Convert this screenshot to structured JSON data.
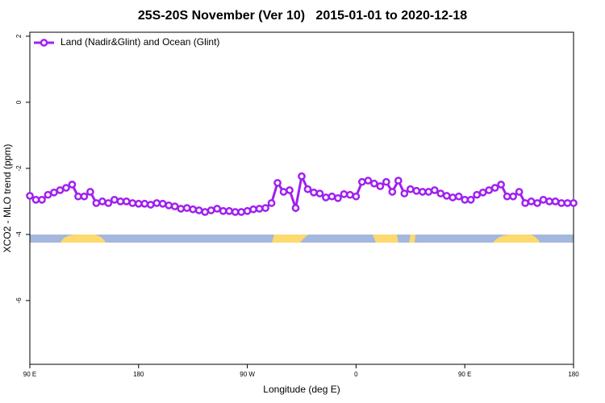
{
  "chart_data": {
    "type": "line",
    "title": "25S-20S November (Ver 10)   2015-01-01 to 2020-12-18",
    "x_label": "Longitude (deg E)",
    "y_label": "XCO2 - MLO trend (ppm)",
    "x": [
      90,
      95,
      100,
      105,
      110,
      115,
      120,
      125,
      130,
      135,
      140,
      145,
      150,
      155,
      160,
      165,
      170,
      175,
      180,
      185,
      190,
      195,
      200,
      205,
      210,
      215,
      220,
      225,
      230,
      235,
      240,
      245,
      250,
      255,
      260,
      265,
      270,
      275,
      280,
      285,
      290,
      295,
      300,
      305,
      310,
      315,
      320,
      325,
      330,
      335,
      340,
      345,
      350,
      355,
      360,
      365,
      370,
      375,
      380,
      385,
      390,
      395,
      400,
      405,
      410,
      415,
      420,
      425,
      430,
      435,
      440,
      445,
      450,
      455,
      460,
      465,
      470,
      475,
      480,
      485,
      490,
      495,
      500,
      505,
      510,
      515,
      520,
      525,
      530,
      535,
      540
    ],
    "series": [
      {
        "name": "Land (Nadir&Glint) and Ocean (Glint)",
        "color": "#a020f0",
        "values": [
          -2.83,
          -2.95,
          -2.95,
          -2.8,
          -2.73,
          -2.66,
          -2.59,
          -2.49,
          -2.85,
          -2.85,
          -2.71,
          -3.05,
          -3.0,
          -3.05,
          -2.95,
          -3.0,
          -3.0,
          -3.05,
          -3.07,
          -3.07,
          -3.1,
          -3.05,
          -3.07,
          -3.12,
          -3.15,
          -3.22,
          -3.2,
          -3.24,
          -3.27,
          -3.32,
          -3.27,
          -3.22,
          -3.29,
          -3.29,
          -3.32,
          -3.32,
          -3.29,
          -3.24,
          -3.22,
          -3.2,
          -3.05,
          -2.44,
          -2.71,
          -2.66,
          -3.2,
          -2.24,
          -2.63,
          -2.73,
          -2.76,
          -2.88,
          -2.85,
          -2.9,
          -2.78,
          -2.8,
          -2.85,
          -2.41,
          -2.37,
          -2.46,
          -2.54,
          -2.41,
          -2.71,
          -2.37,
          -2.76,
          -2.63,
          -2.68,
          -2.71,
          -2.71,
          -2.66,
          -2.76,
          -2.83,
          -2.88,
          -2.85,
          -2.95,
          -2.95,
          -2.8,
          -2.73,
          -2.66,
          -2.59,
          -2.49,
          -2.85,
          -2.85,
          -2.71,
          -3.05,
          -3.0,
          -3.05,
          -2.95,
          -3.0,
          -3.0,
          -3.05,
          -3.05,
          -3.05
        ]
      }
    ],
    "xlim": [
      90,
      540
    ],
    "xticks": [
      {
        "value": 90,
        "label": "90 E"
      },
      180,
      {
        "value": 270,
        "label": "90 W"
      },
      {
        "value": 360,
        "label": "0"
      },
      {
        "value": 450,
        "label": "90 E"
      },
      {
        "value": 540,
        "label": "180"
      }
    ],
    "ylim": [
      -7.93,
      2.12
    ],
    "yticks": [
      2,
      0,
      -2,
      -4,
      -6
    ],
    "legend": "top-left"
  }
}
